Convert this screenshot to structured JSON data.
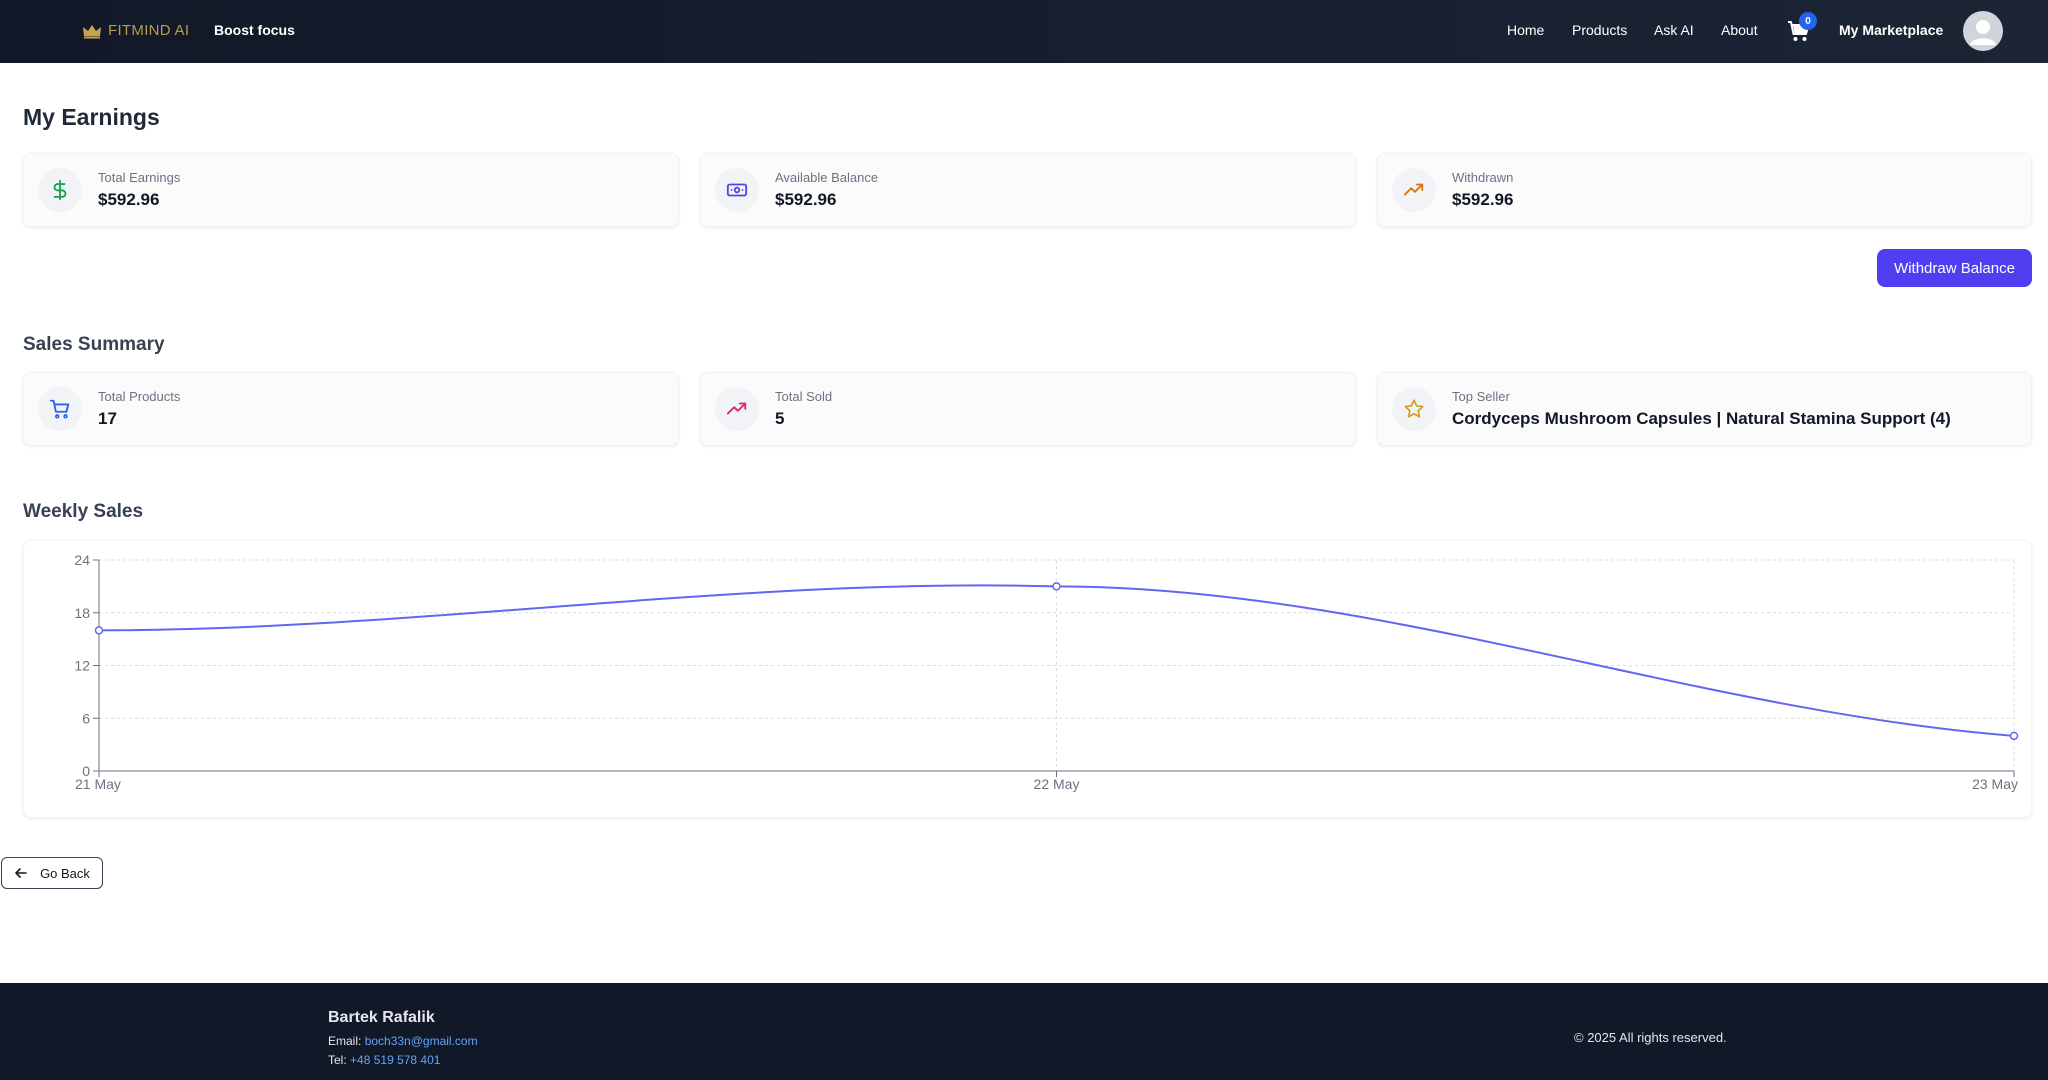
{
  "header": {
    "logo_text": "FITMIND AI",
    "tagline": "Boost focus",
    "nav": [
      {
        "label": "Home"
      },
      {
        "label": "Products"
      },
      {
        "label": "Ask AI"
      },
      {
        "label": "About"
      }
    ],
    "cart_count": "0",
    "marketplace_label": "My Marketplace",
    "icons": {
      "cart": "cart-icon",
      "avatar": "user-avatar-icon",
      "logo": "crown-icon"
    }
  },
  "earnings": {
    "title": "My Earnings",
    "cards": [
      {
        "label": "Total Earnings",
        "value": "$592.96",
        "icon": "dollar-icon",
        "color": "#16a34a"
      },
      {
        "label": "Available Balance",
        "value": "$592.96",
        "icon": "banknote-icon",
        "color": "#4f46e5"
      },
      {
        "label": "Withdrawn",
        "value": "$592.96",
        "icon": "trending-up-icon",
        "color": "#d97706"
      }
    ],
    "withdraw_button": "Withdraw Balance"
  },
  "sales": {
    "title": "Sales Summary",
    "cards": [
      {
        "label": "Total Products",
        "value": "17",
        "icon": "cart-icon",
        "color": "#2563eb"
      },
      {
        "label": "Total Sold",
        "value": "5",
        "icon": "trending-up-icon",
        "color": "#db2777"
      },
      {
        "label": "Top Seller",
        "value": "Cordyceps Mushroom Capsules | Natural Stamina Support (4)",
        "icon": "star-icon",
        "color": "#d4a017"
      }
    ]
  },
  "weekly": {
    "title": "Weekly Sales"
  },
  "chart_data": {
    "type": "line",
    "categories": [
      "21 May",
      "22 May",
      "23 May"
    ],
    "series": [
      {
        "values": [
          16,
          21,
          4
        ],
        "color": "#6366f1"
      }
    ],
    "yticks": [
      0,
      6,
      12,
      18,
      24
    ],
    "ylim": [
      0,
      24
    ],
    "grid": true,
    "xlabel": "",
    "ylabel": ""
  },
  "back_button": "Go Back",
  "footer": {
    "name": "Bartek Rafalik",
    "email_label": "Email:",
    "email": "boch33n@gmail.com",
    "tel_label": "Tel:",
    "tel": "+48 519 578 401",
    "copyright": "© 2025 All rights reserved."
  }
}
